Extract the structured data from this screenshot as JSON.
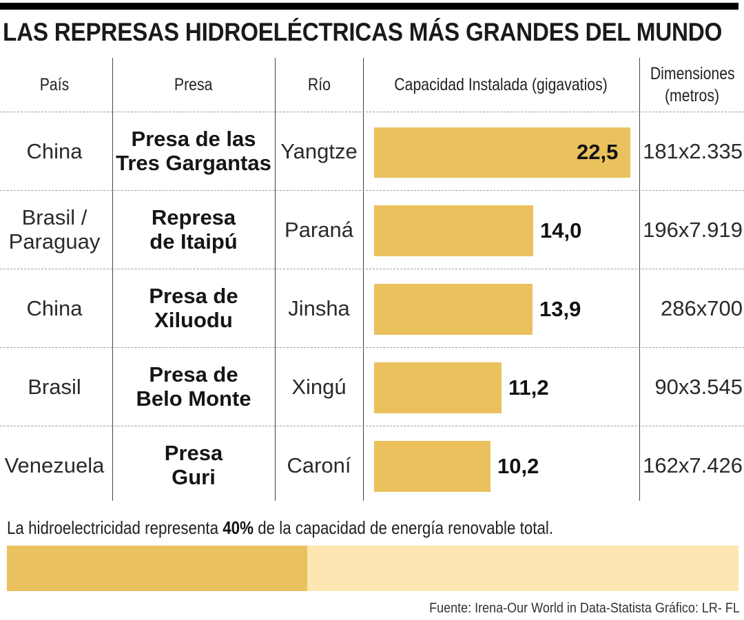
{
  "title": "LAS REPRESAS HIDROELÉCTRICAS MÁS GRANDES DEL MUNDO",
  "headers": {
    "pais": "País",
    "presa": "Presa",
    "rio": "Río",
    "capacidad": "Capacidad Instalada (gigavatios)",
    "dimensiones_1": "Dimensiones",
    "dimensiones_2": "(metros)"
  },
  "rows": [
    {
      "pais": [
        "China"
      ],
      "presa": [
        "Presa de las",
        "Tres Gargantas"
      ],
      "rio": "Yangtze",
      "capacidad": 22.5,
      "capacidad_label": "22,5",
      "dimensiones": "181x2.335"
    },
    {
      "pais": [
        "Brasil /",
        "Paraguay"
      ],
      "presa": [
        "Represa",
        "de Itaipú"
      ],
      "rio": "Paraná",
      "capacidad": 14.0,
      "capacidad_label": "14,0",
      "dimensiones": "196x7.919"
    },
    {
      "pais": [
        "China"
      ],
      "presa": [
        "Presa de",
        "Xiluodu"
      ],
      "rio": "Jinsha",
      "capacidad": 13.9,
      "capacidad_label": "13,9",
      "dimensiones": "286x700"
    },
    {
      "pais": [
        "Brasil"
      ],
      "presa": [
        "Presa de",
        "Belo Monte"
      ],
      "rio": "Xingú",
      "capacidad": 11.2,
      "capacidad_label": "11,2",
      "dimensiones": "90x3.545"
    },
    {
      "pais": [
        "Venezuela"
      ],
      "presa": [
        "Presa",
        "Guri"
      ],
      "rio": "Caroní",
      "capacidad": 10.2,
      "capacidad_label": "10,2",
      "dimensiones": "162x7.426"
    }
  ],
  "chart_data": {
    "type": "bar",
    "categories": [
      "Presa de las Tres Gargantas",
      "Represa de Itaipú",
      "Presa de Xiluodu",
      "Presa de Belo Monte",
      "Presa Guri"
    ],
    "values": [
      22.5,
      14.0,
      13.9,
      11.2,
      10.2
    ],
    "value_labels": [
      "22,5",
      "14,0",
      "13,9",
      "11,2",
      "10,2"
    ],
    "orientation": "horizontal",
    "ylabel": "Capacidad Instalada (gigavatios)",
    "bar_color": "#ebc15e"
  },
  "note": {
    "prefix": "La hidroelectricidad representa ",
    "highlight": "40%",
    "suffix": " de la capacidad de energía renovable total.",
    "share": 0.4,
    "fill_color": "#ebc15e",
    "track_color": "#fde6b2"
  },
  "source": "Fuente:  Irena-Our World in Data-Statista   Gráfico: LR- FL"
}
